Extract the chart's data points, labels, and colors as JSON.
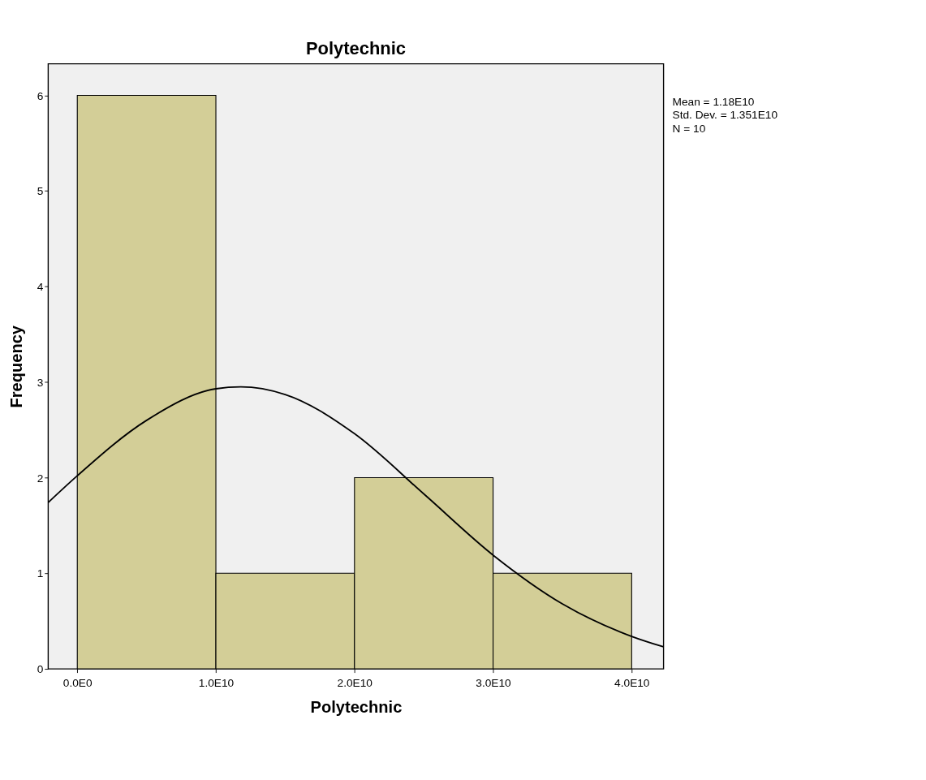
{
  "chart_data": {
    "type": "histogram",
    "title": "Polytechnic",
    "xlabel": "Polytechnic",
    "ylabel": "Frequency",
    "bins": [
      0,
      10000000000,
      20000000000,
      30000000000,
      40000000000
    ],
    "values": [
      6,
      1,
      2,
      1
    ],
    "color": "#d3ce97",
    "series": [
      {
        "type": "line",
        "color": "#000000",
        "x": [
          -2100000000,
          0,
          5000000000,
          10000000000,
          11800000000,
          15000000000,
          20000000000,
          25000000000,
          30000000000,
          35000000000,
          40000000000,
          42300000000
        ],
        "values": [
          1.74,
          2.02,
          2.6,
          2.93,
          2.95,
          2.87,
          2.46,
          1.83,
          1.19,
          0.68,
          0.34,
          0.23
        ]
      }
    ],
    "xlim": [
      -2100000000,
      42300000000
    ],
    "xticks": [
      {
        "value": 0,
        "label": "0.0E0"
      },
      {
        "value": 10000000000,
        "label": "1.0E10"
      },
      {
        "value": 20000000000,
        "label": "2.0E10"
      },
      {
        "value": 30000000000,
        "label": "3.0E10"
      },
      {
        "value": 40000000000,
        "label": "4.0E10"
      }
    ],
    "ylim": [
      0,
      6.33
    ],
    "yticks": [
      0,
      1,
      2,
      3,
      4,
      5,
      6
    ],
    "grid": false,
    "annotations": [
      "Mean = 1.18E10",
      "Std. Dev. = 1.351E10",
      "N = 10"
    ]
  }
}
